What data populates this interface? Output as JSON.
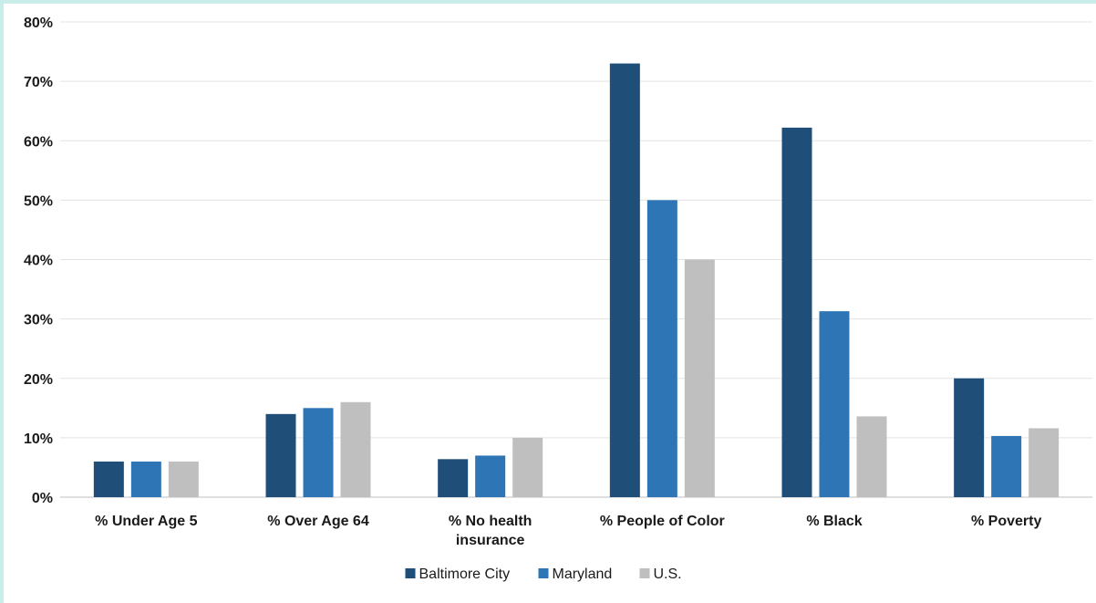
{
  "chart_data": {
    "type": "bar",
    "categories": [
      [
        "% Under Age 5"
      ],
      [
        "% Over Age 64"
      ],
      [
        "% No health",
        "insurance"
      ],
      [
        "% People of Color"
      ],
      [
        "% Black"
      ],
      [
        "% Poverty"
      ]
    ],
    "series": [
      {
        "name": "Baltimore City",
        "color": "#1f4e79",
        "values": [
          6,
          14,
          6.4,
          73,
          62.2,
          20
        ]
      },
      {
        "name": "Maryland",
        "color": "#2e75b6",
        "values": [
          6,
          15,
          7,
          50,
          31.3,
          10.3
        ]
      },
      {
        "name": "U.S.",
        "color": "#bfbfbf",
        "values": [
          6,
          16,
          10,
          40,
          13.6,
          11.6
        ]
      }
    ],
    "ylim": [
      0,
      80
    ],
    "yticks": [
      "0%",
      "10%",
      "20%",
      "30%",
      "40%",
      "50%",
      "60%",
      "70%",
      "80%"
    ],
    "grid": true,
    "legend_position": "bottom-center",
    "title": "",
    "xlabel": "",
    "ylabel": ""
  }
}
